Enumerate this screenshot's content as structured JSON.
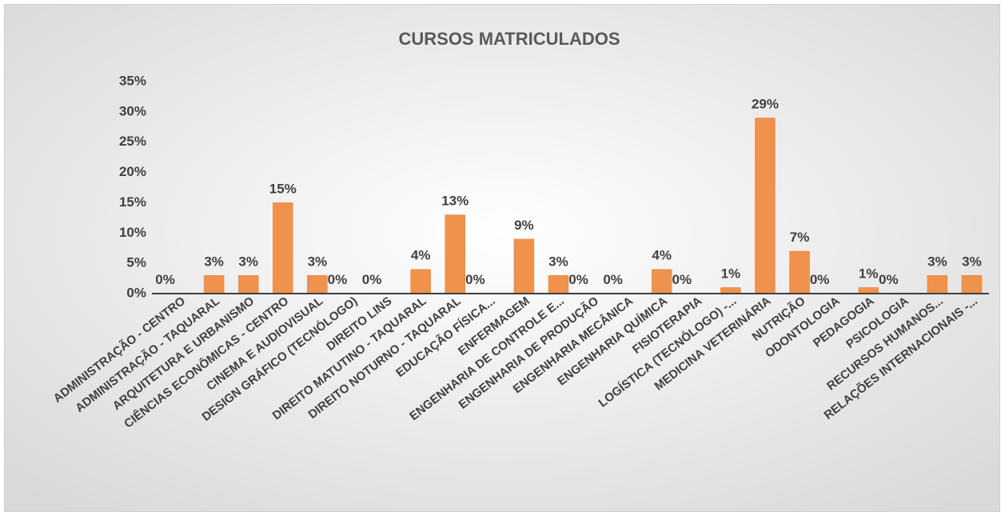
{
  "chart_data": {
    "type": "bar",
    "title": "CURSOS MATRICULADOS",
    "categories": [
      "ADMINISTRAÇÃO - CENTRO",
      "ADMINISTRAÇÃO - TAQUARAL",
      "ARQUITETURA E URBANISMO",
      "CIÊNCIAS ECONÔMICAS - CENTRO",
      "CINEMA E AUDIOVISUAL",
      "DESIGN GRÁFICO (TECNÓLOGO)",
      "DIREITO LINS",
      "DIREITO MATUTINO - TAQUARAL",
      "DIREITO NOTURNO - TAQUARAL",
      "EDUCAÇÃO FÍSICA...",
      "ENFERMAGEM",
      "ENGENHARIA DE CONTROLE E...",
      "ENGENHARIA DE PRODUÇÃO",
      "ENGENHARIA MECÂNICA",
      "ENGENHARIA QUÍMICA",
      "FISIOTERAPIA",
      "LOGÍSTICA (TECNÓLOGO) -...",
      "MEDICINA VETERINÁRIA",
      "NUTRIÇÃO",
      "ODONTOLOGIA",
      "PEDAGOGIA",
      "PSICOLOGIA",
      "RECURSOS HUMANOS...",
      "RELAÇÕES INTERNACIONAIS -..."
    ],
    "values": [
      0,
      3,
      3,
      15,
      3,
      0,
      0,
      4,
      13,
      0,
      9,
      3,
      0,
      0,
      4,
      0,
      1,
      29,
      7,
      0,
      1,
      0,
      3,
      3
    ],
    "value_labels": [
      "0%",
      "3%",
      "3%",
      "15%",
      "3%",
      "0%",
      "0%",
      "4%",
      "13%",
      "0%",
      "9%",
      "3%",
      "0%",
      "0%",
      "4%",
      "0%",
      "1%",
      "29%",
      "7%",
      "0%",
      "1%",
      "0%",
      "3%",
      "3%"
    ],
    "color": "#f0924c",
    "ylim": [
      0,
      35
    ],
    "yticks": [
      {
        "value": 0,
        "label": "0%"
      },
      {
        "value": 5,
        "label": "5%"
      },
      {
        "value": 10,
        "label": "10%"
      },
      {
        "value": 15,
        "label": "15%"
      },
      {
        "value": 20,
        "label": "20%"
      },
      {
        "value": 25,
        "label": "25%"
      },
      {
        "value": 30,
        "label": "30%"
      },
      {
        "value": 35,
        "label": "35%"
      }
    ],
    "grid": false
  }
}
